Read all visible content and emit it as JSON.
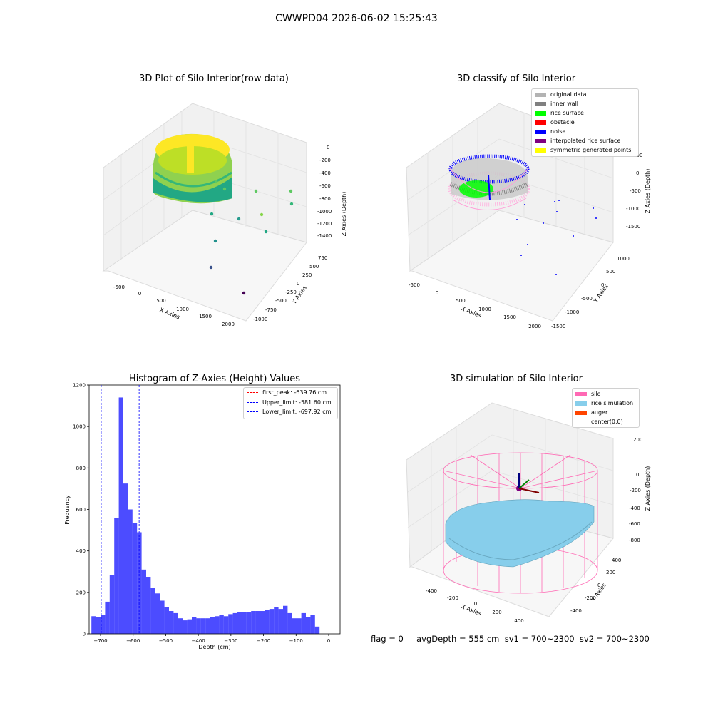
{
  "figure_title": "CWWPD04 2026-06-02 15:25:43",
  "panels": {
    "raw": {
      "title": "3D Plot of Silo Interior(row data)",
      "xlabel": "X Axies",
      "ylabel": "Y Axies",
      "zlabel": "Z Axies (Depth)",
      "x_ticks": [
        "-500",
        "0",
        "500",
        "1000",
        "1500",
        "2000"
      ],
      "y_ticks": [
        "-1000",
        "-750",
        "-500",
        "-250",
        "0",
        "250",
        "500",
        "750"
      ],
      "z_ticks": [
        "0",
        "-200",
        "-400",
        "-600",
        "-800",
        "-1000",
        "-1200",
        "-1400"
      ]
    },
    "classify": {
      "title": "3D classify of Silo Interior",
      "xlabel": "X Axies",
      "ylabel": "Y Axies",
      "zlabel": "Z Axies (Depth)",
      "x_ticks": [
        "-500",
        "0",
        "500",
        "1000",
        "1500",
        "2000"
      ],
      "y_ticks": [
        "-1500",
        "-1000",
        "-500",
        "0",
        "500",
        "1000"
      ],
      "z_ticks": [
        "500",
        "0",
        "-500",
        "-1000",
        "-1500"
      ],
      "legend": [
        {
          "label": "original data",
          "color": "#b3b3b3"
        },
        {
          "label": "inner wall",
          "color": "#808080"
        },
        {
          "label": "rice surface",
          "color": "#00ff00"
        },
        {
          "label": "obstacle",
          "color": "#ff0000"
        },
        {
          "label": "noise",
          "color": "#0000ff"
        },
        {
          "label": "interpolated rice surface",
          "color": "#800080"
        },
        {
          "label": "symmetric generated points",
          "color": "#ffff00"
        }
      ]
    },
    "simulation": {
      "title": "3D simulation of Silo Interior",
      "xlabel": "X Axies",
      "ylabel": "Y Axies",
      "zlabel": "Z Axies (Depth)",
      "x_ticks": [
        "-400",
        "-200",
        "0",
        "200",
        "400"
      ],
      "y_ticks": [
        "-400",
        "-200",
        "0",
        "200",
        "400"
      ],
      "z_ticks": [
        "200",
        "0",
        "-200",
        "-400",
        "-600",
        "-800"
      ],
      "legend": [
        {
          "label": "silo",
          "color": "#ff69b4"
        },
        {
          "label": "rice simulation",
          "color": "#87ceeb"
        },
        {
          "label": "auger",
          "color": "#ff4500"
        },
        {
          "label": "center(0,0)",
          "color": "#ffffff"
        }
      ]
    }
  },
  "chart_data": {
    "type": "bar",
    "title": "Histogram of Z-Axies (Height) Values",
    "xlabel": "Depth (cm)",
    "ylabel": "Frequency",
    "xlim": [
      -735,
      35
    ],
    "ylim": [
      0,
      1200
    ],
    "x_ticks": [
      -700,
      -600,
      -500,
      -400,
      -300,
      -200,
      -100,
      0
    ],
    "y_ticks": [
      0,
      200,
      400,
      600,
      800,
      1000,
      1200
    ],
    "bin_edges": [
      -728,
      -714,
      -700,
      -686,
      -672,
      -658,
      -644,
      -630,
      -616,
      -602,
      -588,
      -574,
      -560,
      -546,
      -532,
      -518,
      -504,
      -490,
      -476,
      -462,
      -448,
      -434,
      -420,
      -406,
      -392,
      -378,
      -364,
      -350,
      -336,
      -322,
      -308,
      -294,
      -280,
      -266,
      -252,
      -238,
      -224,
      -210,
      -196,
      -182,
      -168,
      -154,
      -140,
      -126,
      -112,
      -98,
      -84,
      -70,
      -56,
      -42,
      -28,
      -14,
      0
    ],
    "counts": [
      85,
      80,
      90,
      155,
      285,
      560,
      1140,
      725,
      600,
      535,
      490,
      310,
      275,
      220,
      195,
      160,
      130,
      110,
      100,
      75,
      65,
      70,
      80,
      75,
      75,
      75,
      80,
      85,
      90,
      85,
      95,
      100,
      105,
      105,
      105,
      110,
      110,
      110,
      115,
      120,
      130,
      120,
      135,
      100,
      75,
      75,
      100,
      80,
      90,
      35,
      0,
      0
    ],
    "color": "#0000ff",
    "lines": [
      {
        "name": "first_peak: -639.76 cm",
        "x": -639.76,
        "color": "#ff0000"
      },
      {
        "name": "Upper_limit: -581.60 cm",
        "x": -581.6,
        "color": "#0000ff"
      },
      {
        "name": "Lower_limit: -697.92 cm",
        "x": -697.92,
        "color": "#0000ff"
      }
    ]
  },
  "footer": "flag = 0     avgDepth = 555 cm  sv1 = 700~2300  sv2 = 700~2300"
}
